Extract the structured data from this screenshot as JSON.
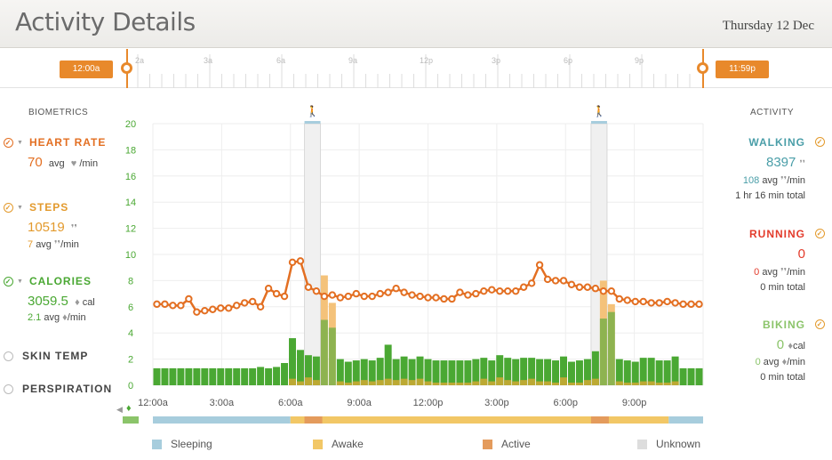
{
  "header": {
    "title": "Activity Details",
    "date": "Thursday 12 Dec"
  },
  "timeline": {
    "start_label": "12:00a",
    "end_label": "11:59p",
    "hour_labels": [
      "2a",
      "3a",
      "6a",
      "9a",
      "12p",
      "3p",
      "6p",
      "9p"
    ]
  },
  "biometrics": {
    "title": "BIOMETRICS",
    "heart_rate": {
      "label": "HEART RATE",
      "value": "70",
      "avg_text": "avg",
      "unit": "/min"
    },
    "steps": {
      "label": "STEPS",
      "value": "10519",
      "avg_value": "7",
      "avg_text": "avg",
      "unit": "/min"
    },
    "calories": {
      "label": "CALORIES",
      "value": "3059.5",
      "unit": "cal",
      "avg_value": "2.1",
      "avg_text": "avg",
      "avg_unit": "/min"
    },
    "skin_temp": {
      "label": "SKIN TEMP"
    },
    "perspiration": {
      "label": "PERSPIRATION"
    }
  },
  "activity": {
    "title": "ACTIVITY",
    "walking": {
      "label": "WALKING",
      "value": "8397",
      "avg": "108",
      "avg_text": "avg",
      "unit": "/min",
      "total": "1 hr 16 min total"
    },
    "running": {
      "label": "RUNNING",
      "value": "0",
      "avg": "0",
      "avg_text": "avg",
      "unit": "/min",
      "total": "0 min total"
    },
    "biking": {
      "label": "BIKING",
      "value": "0",
      "value_unit": "cal",
      "avg": "0",
      "avg_text": "avg",
      "unit": "/min",
      "total": "0 min total"
    }
  },
  "legend": [
    {
      "label": "Sleeping",
      "color": "#a7cddd"
    },
    {
      "label": "Awake",
      "color": "#f2c766"
    },
    {
      "label": "Active",
      "color": "#e49b5c"
    },
    {
      "label": "Unknown",
      "color": "#dddddd"
    }
  ],
  "colors": {
    "heart": "#e36f22",
    "steps": "#e39a2d",
    "calories": "#4aa833",
    "walking": "#4a9ea8",
    "running": "#e33b2b",
    "biking": "#8bc46a",
    "accent": "#e8892b"
  },
  "chart_data": {
    "type": "bar",
    "y_ticks": [
      "0",
      "2",
      "4",
      "6",
      "8",
      "10",
      "12",
      "14",
      "16",
      "18",
      "20"
    ],
    "ylim": [
      0,
      20
    ],
    "x_tick_labels": [
      "12:00a",
      "3:00a",
      "6:00a",
      "9:00a",
      "12:00p",
      "3:00p",
      "6:00p",
      "9:00p"
    ],
    "series": [
      {
        "name": "calories",
        "type": "bar",
        "color": "#4aa833",
        "values": [
          1.3,
          1.3,
          1.3,
          1.3,
          1.3,
          1.3,
          1.3,
          1.3,
          1.3,
          1.3,
          1.3,
          1.3,
          1.3,
          1.4,
          1.3,
          1.4,
          1.7,
          3.6,
          2.7,
          2.3,
          2.2,
          5.0,
          4.4,
          2.0,
          1.8,
          1.9,
          2.0,
          1.9,
          2.1,
          3.1,
          2.0,
          2.2,
          2.0,
          2.2,
          2.0,
          1.9,
          1.9,
          1.9,
          1.9,
          1.9,
          2.0,
          2.1,
          1.9,
          2.3,
          2.1,
          2.0,
          2.1,
          2.1,
          2.0,
          2.0,
          1.9,
          2.2,
          1.8,
          1.9,
          2.0,
          2.6,
          5.1,
          5.6,
          2.0,
          1.9,
          1.8,
          2.1,
          2.1,
          1.9,
          1.9,
          2.2,
          1.3,
          1.3,
          1.3
        ]
      },
      {
        "name": "steps",
        "type": "bar",
        "color": "#f4c27a",
        "values": [
          0,
          0,
          0,
          0,
          0,
          0,
          0,
          0,
          0,
          0,
          0,
          0,
          0,
          0,
          0,
          0,
          0,
          0.5,
          0.3,
          0.6,
          0.4,
          8.4,
          6.3,
          0.3,
          0.2,
          0.3,
          0.4,
          0.3,
          0.4,
          0.5,
          0.4,
          0.5,
          0.4,
          0.5,
          0.3,
          0.2,
          0.2,
          0.2,
          0.2,
          0.2,
          0.3,
          0.5,
          0.3,
          0.6,
          0.4,
          0.3,
          0.4,
          0.5,
          0.3,
          0.3,
          0.2,
          0.6,
          0.2,
          0.2,
          0.4,
          0.5,
          8.0,
          6.2,
          0.3,
          0.2,
          0.2,
          0.3,
          0.3,
          0.2,
          0.2,
          0.3,
          0,
          0,
          0
        ]
      },
      {
        "name": "heart_rate",
        "type": "line",
        "color": "#e36f22",
        "values": [
          6.2,
          6.2,
          6.1,
          6.1,
          6.6,
          5.6,
          5.7,
          5.8,
          5.9,
          5.9,
          6.1,
          6.3,
          6.4,
          6.0,
          7.4,
          7.0,
          6.8,
          9.4,
          9.5,
          7.5,
          7.2,
          6.8,
          6.9,
          6.7,
          6.8,
          7.0,
          6.8,
          6.8,
          7.0,
          7.1,
          7.4,
          7.1,
          6.9,
          6.8,
          6.7,
          6.7,
          6.6,
          6.6,
          7.1,
          6.9,
          7.0,
          7.2,
          7.3,
          7.2,
          7.2,
          7.2,
          7.5,
          7.8,
          9.2,
          8.1,
          8.0,
          8.0,
          7.7,
          7.5,
          7.5,
          7.4,
          7.2,
          7.2,
          6.6,
          6.5,
          6.4,
          6.4,
          6.3,
          6.3,
          6.4,
          6.3,
          6.2,
          6.2,
          6.2
        ]
      }
    ],
    "activity_bands": [
      {
        "state": "Sleeping",
        "from": "12:00a",
        "to": "6:00a"
      },
      {
        "state": "Awake",
        "from": "6:00a",
        "to": "10:30p"
      },
      {
        "state": "Sleeping",
        "from": "10:30p",
        "to": "11:59p"
      }
    ],
    "walking_markers": [
      "7:00a",
      "7:30p"
    ]
  }
}
